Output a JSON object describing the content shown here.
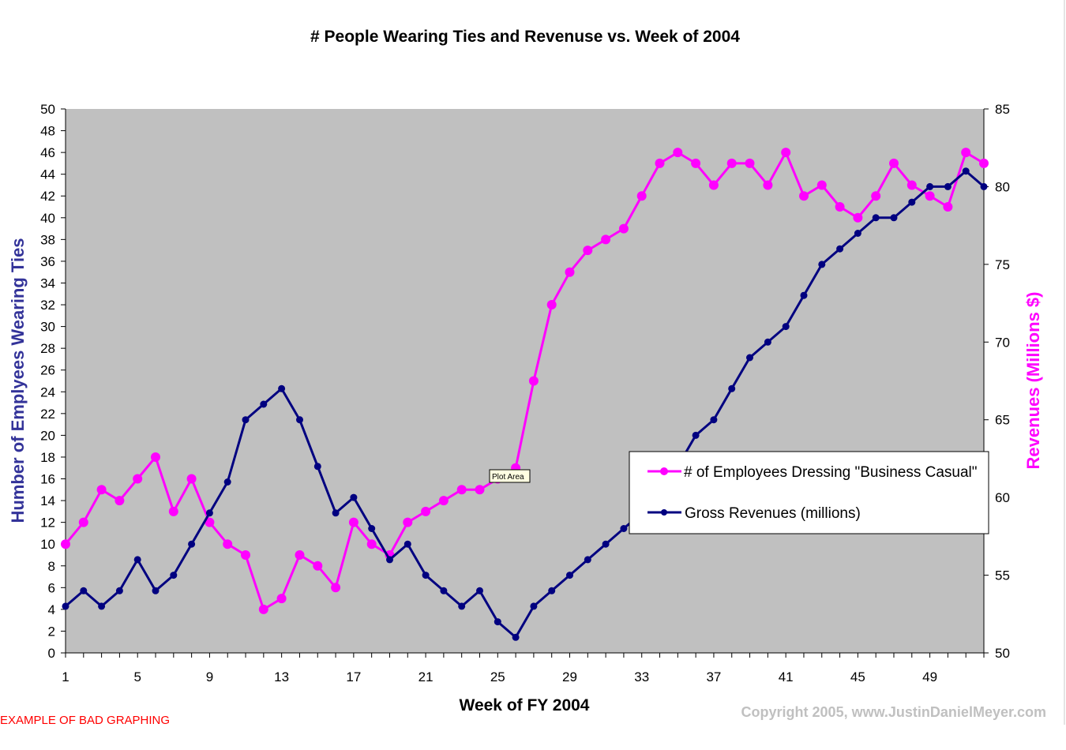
{
  "chart_data": {
    "type": "line",
    "title": "# People Wearing Ties and Revenuse vs. Week of 2004",
    "xlabel": "Week of FY 2004",
    "ylabel": "Humber of Emplyees Wearing Ties",
    "ylabel_right": "Revenues (Millions $)",
    "x": [
      1,
      2,
      3,
      4,
      5,
      6,
      7,
      8,
      9,
      10,
      11,
      12,
      13,
      14,
      15,
      16,
      17,
      18,
      19,
      20,
      21,
      22,
      23,
      24,
      25,
      26,
      27,
      28,
      29,
      30,
      31,
      32,
      33,
      34,
      35,
      36,
      37,
      38,
      39,
      40,
      41,
      42,
      43,
      44,
      45,
      46,
      47,
      48,
      49,
      50,
      51,
      52
    ],
    "x_tick_labels": [
      "1",
      "5",
      "9",
      "13",
      "17",
      "21",
      "25",
      "29",
      "33",
      "37",
      "41",
      "45",
      "49"
    ],
    "x_tick_label_weeks": [
      1,
      5,
      9,
      13,
      17,
      21,
      25,
      29,
      33,
      37,
      41,
      45,
      49
    ],
    "ylim": [
      0,
      50
    ],
    "y_ticks": [
      0,
      2,
      4,
      6,
      8,
      10,
      12,
      14,
      16,
      18,
      20,
      22,
      24,
      26,
      28,
      30,
      32,
      34,
      36,
      38,
      40,
      42,
      44,
      46,
      48,
      50
    ],
    "ylim_right": [
      50,
      85
    ],
    "y_ticks_right": [
      50,
      55,
      60,
      65,
      70,
      75,
      80,
      85
    ],
    "grid": false,
    "plot_background": "#c0c0c0",
    "legend_position": "center-right",
    "series": [
      {
        "name": "# of Employees Dressing \"Business Casual\"",
        "axis": "left",
        "color": "#ff00ff",
        "values": [
          10,
          12,
          15,
          14,
          16,
          18,
          13,
          16,
          12,
          10,
          9,
          4,
          5,
          9,
          8,
          6,
          12,
          10,
          9,
          12,
          13,
          14,
          15,
          15,
          16,
          17,
          25,
          32,
          35,
          37,
          38,
          39,
          42,
          45,
          46,
          45,
          43,
          45,
          45,
          43,
          46,
          42,
          43,
          41,
          40,
          42,
          45,
          43,
          42,
          41,
          46,
          45
        ]
      },
      {
        "name": "Gross Revenues (millions)",
        "axis": "right",
        "color": "#000080",
        "values": [
          53,
          54,
          53,
          54,
          56,
          54,
          55,
          57,
          59,
          61,
          65,
          66,
          67,
          65,
          62,
          59,
          60,
          58,
          56,
          57,
          55,
          54,
          53,
          54,
          52,
          51,
          53,
          54,
          55,
          56,
          57,
          58,
          59,
          60,
          62,
          64,
          65,
          67,
          69,
          70,
          71,
          73,
          75,
          76,
          77,
          78,
          78,
          79,
          80,
          80,
          81,
          80
        ]
      }
    ],
    "annotations": {
      "tooltip": "Plot Area",
      "note": "EXAMPLE OF BAD GRAPHING",
      "copyright": "Copyright 2005, www.JustinDanielMeyer.com"
    }
  },
  "colors": {
    "left_axis_label": "#333399",
    "right_axis_label": "#ff00ff",
    "note": "#ff0000",
    "copyright": "#c0c0c0",
    "tooltip_bg": "#ffffe1"
  }
}
